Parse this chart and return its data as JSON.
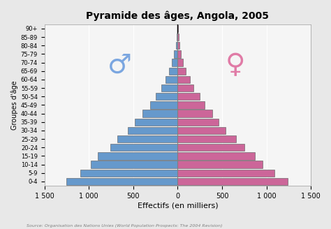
{
  "title": "Pyramide des âges, Angola, 2005",
  "xlabel": "Effectifs (en milliers)",
  "ylabel": "Groupes d'âge",
  "source": "Source: Organisation des Nations Unies (World Population Prospects: The 2004 Revision)",
  "age_groups": [
    "0-4",
    "5-9",
    "10-14",
    "15-19",
    "20-24",
    "25-29",
    "30-34",
    "35-39",
    "40-44",
    "45-49",
    "50-54",
    "55-59",
    "60-64",
    "65-69",
    "70-74",
    "75-79",
    "80-84",
    "85-89",
    "90+"
  ],
  "male": [
    1250,
    1100,
    975,
    900,
    760,
    680,
    560,
    480,
    400,
    310,
    250,
    185,
    140,
    95,
    65,
    40,
    22,
    10,
    4
  ],
  "female": [
    1240,
    1090,
    960,
    870,
    750,
    660,
    540,
    460,
    390,
    300,
    245,
    180,
    135,
    92,
    62,
    38,
    20,
    9,
    3
  ],
  "male_color": "#6699CC",
  "female_color": "#CC6699",
  "bar_edge_color": "#555555",
  "background_color": "#e8e8e8",
  "plot_bg_color": "#f5f5f5",
  "xlim": 1500,
  "xticks": [
    -1500,
    -1000,
    -500,
    0,
    500,
    1000,
    1500
  ],
  "xticklabels": [
    "1 500",
    "1 000",
    "500",
    "0",
    "500",
    "1 000",
    "1 500"
  ],
  "male_symbol": "♂",
  "female_symbol": "♀",
  "male_symbol_color": "#6699DD",
  "female_symbol_color": "#DD6699"
}
